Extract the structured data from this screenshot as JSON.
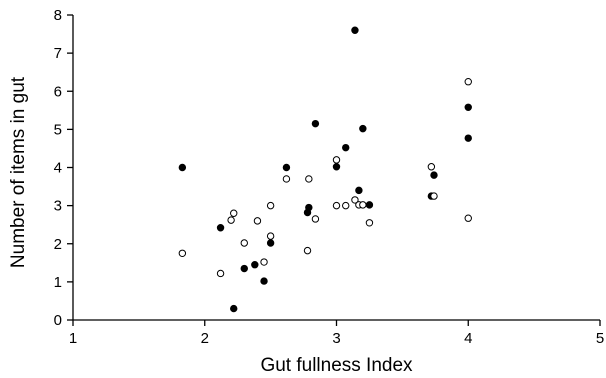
{
  "chart_data": {
    "type": "scatter",
    "title": "",
    "xlabel": "Gut fullness Index",
    "ylabel": "Number of items in gut",
    "xlim": [
      1,
      5
    ],
    "ylim": [
      0,
      8
    ],
    "x_ticks": [
      "1",
      "2",
      "3",
      "4",
      "5"
    ],
    "y_ticks": [
      "0",
      "1",
      "2",
      "3",
      "4",
      "5",
      "6",
      "7",
      "8"
    ],
    "grid": false,
    "legend": "none",
    "series": [
      {
        "marker": "filled-circle",
        "color": "#000000",
        "points": [
          [
            1.83,
            4.0
          ],
          [
            2.12,
            2.42
          ],
          [
            2.22,
            0.3
          ],
          [
            2.3,
            1.35
          ],
          [
            2.38,
            1.45
          ],
          [
            2.45,
            1.02
          ],
          [
            2.5,
            2.02
          ],
          [
            2.62,
            4.0
          ],
          [
            2.78,
            2.82
          ],
          [
            2.79,
            2.95
          ],
          [
            2.84,
            5.15
          ],
          [
            3.0,
            4.02
          ],
          [
            3.07,
            4.52
          ],
          [
            3.14,
            7.6
          ],
          [
            3.17,
            3.4
          ],
          [
            3.2,
            5.02
          ],
          [
            3.25,
            3.02
          ],
          [
            3.72,
            3.25
          ],
          [
            3.74,
            3.8
          ],
          [
            4.0,
            5.58
          ],
          [
            4.0,
            4.77
          ]
        ]
      },
      {
        "marker": "open-circle",
        "color": "#000000",
        "points": [
          [
            1.83,
            1.75
          ],
          [
            2.12,
            1.22
          ],
          [
            2.2,
            2.62
          ],
          [
            2.22,
            2.8
          ],
          [
            2.3,
            2.02
          ],
          [
            2.4,
            2.6
          ],
          [
            2.45,
            1.52
          ],
          [
            2.5,
            2.2
          ],
          [
            2.5,
            3.0
          ],
          [
            2.62,
            3.7
          ],
          [
            2.78,
            1.82
          ],
          [
            2.79,
            3.7
          ],
          [
            2.84,
            2.65
          ],
          [
            3.0,
            3.0
          ],
          [
            3.0,
            4.2
          ],
          [
            3.07,
            3.0
          ],
          [
            3.14,
            3.15
          ],
          [
            3.17,
            3.02
          ],
          [
            3.2,
            3.02
          ],
          [
            3.25,
            2.55
          ],
          [
            3.72,
            4.02
          ],
          [
            3.74,
            3.25
          ],
          [
            4.0,
            6.25
          ],
          [
            4.0,
            2.67
          ]
        ]
      }
    ]
  }
}
